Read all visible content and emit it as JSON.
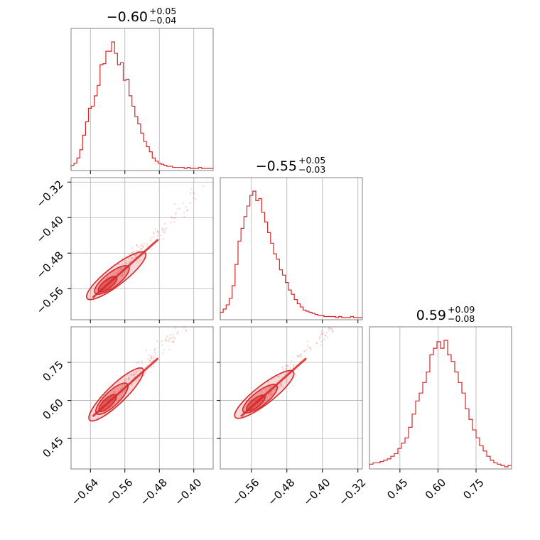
{
  "chart_data": {
    "type": "corner",
    "colors": {
      "series": "#d62728",
      "grid": "#b0b0b0",
      "frame": "#808080"
    },
    "grid": true,
    "params": [
      {
        "title": {
          "median": "−0.60",
          "plus": "+0.05",
          "minus": "−0.04"
        },
        "range": [
          -0.685,
          -0.355
        ]
      },
      {
        "title": {
          "median": "−0.55",
          "plus": "+0.05",
          "minus": "−0.03"
        },
        "range": [
          -0.63,
          -0.31
        ]
      },
      {
        "title": {
          "median": "0.59",
          "plus": "+0.09",
          "minus": "−0.08"
        },
        "range": [
          0.33,
          0.89
        ]
      }
    ],
    "ticks": {
      "x0": {
        "values": [
          -0.64,
          -0.56,
          -0.48,
          -0.4
        ],
        "labels": [
          "−0.64",
          "−0.56",
          "−0.48",
          "−0.40"
        ]
      },
      "x1": {
        "values": [
          -0.56,
          -0.48,
          -0.4,
          -0.32
        ],
        "labels": [
          "−0.56",
          "−0.48",
          "−0.40",
          "−0.32"
        ]
      },
      "x2": {
        "values": [
          0.45,
          0.6,
          0.75
        ],
        "labels": [
          "0.45",
          "0.60",
          "0.75"
        ]
      },
      "y1": {
        "values": [
          -0.32,
          -0.4,
          -0.48,
          -0.56
        ],
        "labels": [
          "−0.32",
          "−0.40",
          "−0.48",
          "−0.56"
        ]
      },
      "y2": {
        "values": [
          0.75,
          0.6,
          0.45
        ],
        "labels": [
          "0.75",
          "0.60",
          "0.45"
        ]
      }
    },
    "histograms": [
      {
        "param": 0,
        "peak_at": -0.6,
        "counts": [
          3,
          5,
          10,
          18,
          32,
          45,
          58,
          60,
          70,
          80,
          100,
          101,
          113,
          113,
          122,
          111,
          100,
          102,
          85,
          86,
          70,
          60,
          50,
          43,
          34,
          26,
          21,
          16,
          10,
          7,
          5,
          4,
          3,
          2,
          2,
          1,
          1,
          1,
          1,
          0,
          1,
          0,
          0,
          0,
          1,
          0,
          0,
          0,
          0
        ]
      },
      {
        "param": 1,
        "peak_at": -0.55,
        "counts": [
          5,
          8,
          12,
          18,
          30,
          50,
          72,
          84,
          95,
          105,
          115,
          119,
          110,
          112,
          99,
          90,
          80,
          70,
          60,
          55,
          45,
          40,
          33,
          26,
          22,
          17,
          13,
          10,
          7,
          6,
          5,
          4,
          3,
          2,
          2,
          1,
          1,
          1,
          1,
          0,
          1,
          0,
          0,
          0,
          1,
          0,
          0,
          0
        ]
      },
      {
        "param": 2,
        "peak_at": 0.59,
        "counts": [
          2,
          3,
          3,
          4,
          5,
          6,
          8,
          10,
          14,
          18,
          22,
          30,
          40,
          50,
          56,
          64,
          72,
          85,
          90,
          95,
          90,
          96,
          85,
          80,
          72,
          64,
          56,
          44,
          36,
          28,
          22,
          16,
          12,
          8,
          5,
          3,
          2,
          1,
          0,
          1
        ]
      }
    ],
    "pairs": [
      {
        "x_param": 0,
        "y_param": 1,
        "correlation": 0.95,
        "levels": [
          "inner",
          "middle",
          "outer"
        ]
      },
      {
        "x_param": 0,
        "y_param": 2,
        "correlation": 0.97,
        "levels": [
          "inner",
          "middle",
          "outer"
        ]
      },
      {
        "x_param": 1,
        "y_param": 2,
        "correlation": 0.96,
        "levels": [
          "inner",
          "middle",
          "outer"
        ]
      }
    ]
  }
}
